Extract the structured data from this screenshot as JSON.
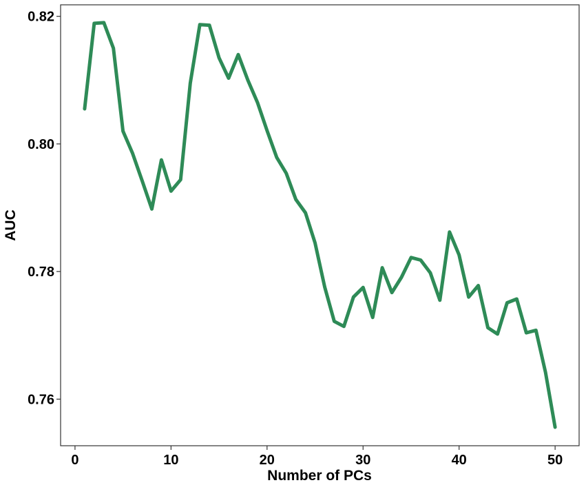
{
  "chart_data": {
    "type": "line",
    "title": "",
    "xlabel": "Number of PCs",
    "ylabel": "AUC",
    "xlim": [
      -1.5,
      52.5
    ],
    "ylim": [
      0.7527,
      0.8218
    ],
    "xticks": [
      0,
      10,
      20,
      30,
      40,
      50
    ],
    "xtick_labels": [
      "0",
      "10",
      "20",
      "30",
      "40",
      "50"
    ],
    "yticks": [
      0.76,
      0.78,
      0.8,
      0.82
    ],
    "ytick_labels": [
      "0.76",
      "0.78",
      "0.80",
      "0.82"
    ],
    "grid": false,
    "series": [
      {
        "color": "#2e8b57",
        "x": [
          1,
          2,
          3,
          4,
          5,
          6,
          7,
          8,
          9,
          10,
          11,
          12,
          13,
          14,
          15,
          16,
          17,
          18,
          19,
          20,
          21,
          22,
          23,
          24,
          25,
          26,
          27,
          28,
          29,
          30,
          31,
          32,
          33,
          34,
          35,
          36,
          37,
          38,
          39,
          40,
          41,
          42,
          43,
          44,
          45,
          46,
          47,
          48,
          49,
          50
        ],
        "y": [
          0.8055,
          0.8189,
          0.819,
          0.815,
          0.802,
          0.7985,
          0.7942,
          0.7898,
          0.7975,
          0.7926,
          0.7944,
          0.8095,
          0.8187,
          0.8186,
          0.8135,
          0.8103,
          0.814,
          0.81,
          0.8065,
          0.8021,
          0.7979,
          0.7954,
          0.7913,
          0.7892,
          0.7845,
          0.7776,
          0.7722,
          0.7714,
          0.776,
          0.7775,
          0.7728,
          0.7806,
          0.7767,
          0.7791,
          0.7822,
          0.7818,
          0.7798,
          0.7755,
          0.7862,
          0.7826,
          0.776,
          0.7778,
          0.7712,
          0.7702,
          0.7751,
          0.7757,
          0.7704,
          0.7708,
          0.7642,
          0.7556
        ]
      }
    ]
  }
}
